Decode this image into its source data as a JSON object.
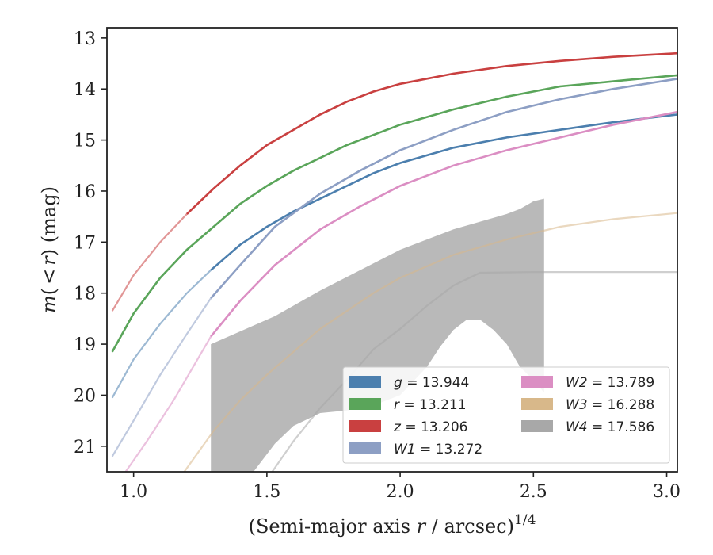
{
  "chart_data": {
    "type": "line",
    "title": "",
    "xlabel": "(Semi-major axis r / arcsec)^{1/4}",
    "xlabel_parts": {
      "prefix": "(Semi-major axis ",
      "var": "r",
      "middle": " / arcsec)",
      "sup": "1/4"
    },
    "ylabel": "m(<r) (mag)",
    "ylabel_parts": {
      "func": "m",
      "open": "(",
      "lt": "<",
      "var": "r",
      "close": ")",
      "unit": " (mag)"
    },
    "xlim": [
      0.9,
      3.04
    ],
    "ylim": [
      21.5,
      12.8
    ],
    "y_inverted": true,
    "x_ticks": [
      1.0,
      1.5,
      2.0,
      2.5,
      3.0
    ],
    "x_tick_labels": [
      "1.0",
      "1.5",
      "2.0",
      "2.5",
      "3.0"
    ],
    "y_ticks": [
      13,
      14,
      15,
      16,
      17,
      18,
      19,
      20,
      21
    ],
    "y_tick_labels": [
      "13",
      "14",
      "15",
      "16",
      "17",
      "18",
      "19",
      "20",
      "21"
    ],
    "grid": false,
    "legend_position": "lower-right",
    "series": [
      {
        "name": "g",
        "label_value": "13.944",
        "color": "#4c7fae",
        "x_faint_end": 1.29,
        "x": [
          0.92,
          1.0,
          1.1,
          1.2,
          1.29,
          1.4,
          1.5,
          1.6,
          1.7,
          1.8,
          1.9,
          2.0,
          2.2,
          2.4,
          2.6,
          2.8,
          3.04
        ],
        "y": [
          20.05,
          19.3,
          18.6,
          18.0,
          17.55,
          17.05,
          16.7,
          16.4,
          16.15,
          15.9,
          15.65,
          15.45,
          15.15,
          14.95,
          14.8,
          14.65,
          14.5
        ]
      },
      {
        "name": "r",
        "label_value": "13.211",
        "color": "#5aa55a",
        "x_faint_end": 0.92,
        "x": [
          0.92,
          1.0,
          1.1,
          1.2,
          1.3,
          1.4,
          1.5,
          1.6,
          1.7,
          1.8,
          1.9,
          2.0,
          2.2,
          2.4,
          2.6,
          2.8,
          3.04
        ],
        "y": [
          19.15,
          18.4,
          17.7,
          17.15,
          16.7,
          16.25,
          15.9,
          15.6,
          15.35,
          15.1,
          14.9,
          14.7,
          14.4,
          14.15,
          13.95,
          13.85,
          13.73
        ]
      },
      {
        "name": "z",
        "label_value": "13.206",
        "color": "#c94040",
        "x_faint_end": 1.2,
        "x": [
          0.92,
          1.0,
          1.1,
          1.2,
          1.3,
          1.4,
          1.5,
          1.6,
          1.7,
          1.8,
          1.9,
          2.0,
          2.2,
          2.4,
          2.6,
          2.8,
          3.04
        ],
        "y": [
          18.35,
          17.65,
          17.0,
          16.45,
          15.95,
          15.5,
          15.1,
          14.8,
          14.5,
          14.25,
          14.05,
          13.9,
          13.7,
          13.55,
          13.45,
          13.37,
          13.3
        ]
      },
      {
        "name": "W1",
        "label_value": "13.272",
        "color": "#8d9fc4",
        "x_faint_end": 1.29,
        "x": [
          0.92,
          1.0,
          1.1,
          1.2,
          1.29,
          1.4,
          1.53,
          1.7,
          1.85,
          2.0,
          2.2,
          2.4,
          2.6,
          2.8,
          3.04
        ],
        "y": [
          21.2,
          20.5,
          19.6,
          18.8,
          18.1,
          17.45,
          16.7,
          16.05,
          15.6,
          15.2,
          14.8,
          14.45,
          14.2,
          14.0,
          13.8
        ]
      },
      {
        "name": "W2",
        "label_value": "13.789",
        "color": "#db8ec3",
        "x_faint_end": 1.29,
        "x": [
          0.97,
          1.05,
          1.15,
          1.29,
          1.4,
          1.53,
          1.7,
          1.85,
          2.0,
          2.2,
          2.4,
          2.6,
          2.8,
          3.04
        ],
        "y": [
          21.5,
          20.9,
          20.1,
          18.85,
          18.15,
          17.45,
          16.75,
          16.3,
          15.9,
          15.5,
          15.2,
          14.95,
          14.7,
          14.45
        ]
      },
      {
        "name": "W3",
        "label_value": "16.288",
        "color": "#d8b88a",
        "x_faint_end": 3.04,
        "x": [
          1.19,
          1.3,
          1.4,
          1.5,
          1.6,
          1.7,
          1.8,
          1.9,
          2.0,
          2.2,
          2.4,
          2.6,
          2.8,
          3.04
        ],
        "y": [
          21.5,
          20.7,
          20.1,
          19.6,
          19.15,
          18.7,
          18.35,
          18.0,
          17.7,
          17.25,
          16.95,
          16.7,
          16.55,
          16.43
        ]
      },
      {
        "name": "W4",
        "label_value": "17.586",
        "color": "#a8a8a8",
        "x_faint_end": 3.04,
        "x": [
          1.52,
          1.6,
          1.7,
          1.8,
          1.9,
          2.0,
          2.1,
          2.2,
          2.3,
          2.5,
          2.8,
          3.04
        ],
        "y": [
          21.5,
          20.9,
          20.25,
          19.7,
          19.1,
          18.7,
          18.25,
          17.85,
          17.6,
          17.586,
          17.586,
          17.586
        ]
      }
    ],
    "uncertainty_band": {
      "series": "W4",
      "color": "#a8a8a8",
      "upper": {
        "x": [
          1.29,
          1.4,
          1.53,
          1.7,
          1.85,
          2.0,
          2.1,
          2.2,
          2.3,
          2.4,
          2.45,
          2.5,
          2.54
        ],
        "y": [
          19.0,
          18.75,
          18.45,
          17.95,
          17.55,
          17.15,
          16.95,
          16.75,
          16.6,
          16.45,
          16.35,
          16.2,
          16.15
        ]
      },
      "lower": {
        "x": [
          2.54,
          2.5,
          2.45,
          2.4,
          2.35,
          2.3,
          2.25,
          2.2,
          2.15,
          2.1,
          2.0,
          1.9,
          1.8,
          1.7,
          1.6,
          1.53,
          1.45,
          1.29
        ],
        "y": [
          19.95,
          19.7,
          19.45,
          19.0,
          18.72,
          18.52,
          18.52,
          18.72,
          19.05,
          19.45,
          20.0,
          20.2,
          20.3,
          20.35,
          20.6,
          20.95,
          21.5,
          21.5
        ]
      }
    }
  },
  "legend": {
    "columns": [
      [
        {
          "var": "g",
          "value": "13.944",
          "color": "#4c7fae"
        },
        {
          "var": "r",
          "value": "13.211",
          "color": "#5aa55a"
        },
        {
          "var": "z",
          "value": "13.206",
          "color": "#c94040"
        },
        {
          "var": "W1",
          "value": "13.272",
          "color": "#8d9fc4"
        }
      ],
      [
        {
          "var": "W2",
          "value": "13.789",
          "color": "#db8ec3"
        },
        {
          "var": "W3",
          "value": "16.288",
          "color": "#d8b88a"
        },
        {
          "var": "W4",
          "value": "17.586",
          "color": "#a8a8a8"
        }
      ]
    ]
  }
}
